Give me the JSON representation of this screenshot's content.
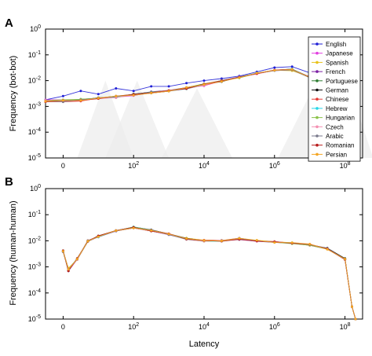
{
  "figure": {
    "panels": [
      {
        "letter": "A",
        "ylabel": "Frequency (bot-bot)"
      },
      {
        "letter": "B",
        "ylabel": "Frequency (human-human)"
      }
    ],
    "xlabel": "Latency",
    "x_ticks": [
      {
        "v": 0,
        "base": "0",
        "exp": ""
      },
      {
        "v": 2,
        "base": "10",
        "exp": "2"
      },
      {
        "v": 4,
        "base": "10",
        "exp": "4"
      },
      {
        "v": 6,
        "base": "10",
        "exp": "6"
      },
      {
        "v": 8,
        "base": "10",
        "exp": "8"
      }
    ],
    "y_ticks": [
      {
        "v": 0,
        "base": "10",
        "exp": "0"
      },
      {
        "v": -1,
        "base": "10",
        "exp": "-1"
      },
      {
        "v": -2,
        "base": "10",
        "exp": "-2"
      },
      {
        "v": -3,
        "base": "10",
        "exp": "-3"
      },
      {
        "v": -4,
        "base": "10",
        "exp": "-4"
      },
      {
        "v": -5,
        "base": "10",
        "exp": "-5"
      }
    ]
  },
  "chart_data": [
    {
      "type": "line",
      "panel": "A",
      "ylabel": "Frequency (bot-bot)",
      "xlabel": "",
      "x_scale": "log10 of latency (tick 0 at left)",
      "y_scale": "log",
      "xlim": [
        -0.5,
        8.5
      ],
      "ylim": [
        1e-05,
        1
      ],
      "grid": false,
      "legend_position": "top-right",
      "background_shapes": "light gray triangular bumps",
      "x": [
        -0.5,
        0,
        0.5,
        1,
        1.5,
        2,
        2.5,
        3,
        3.5,
        4,
        4.5,
        5,
        5.5,
        6,
        6.5,
        7,
        7.5,
        8
      ],
      "series": [
        {
          "name": "English",
          "color": "#1f1fd6",
          "values": [
            0.0018,
            0.0025,
            0.004,
            0.003,
            0.005,
            0.004,
            0.006,
            0.006,
            0.008,
            0.01,
            0.012,
            0.015,
            0.022,
            0.032,
            0.035,
            0.02,
            0.009,
            0.0025
          ]
        },
        {
          "name": "Japanese",
          "color": "#e23de0",
          "values": [
            0.0018,
            0.0018,
            0.0018,
            0.0021,
            0.0023,
            0.0026,
            0.0036,
            0.004,
            0.0054,
            0.0063,
            0.0098,
            0.0134,
            0.0185,
            0.0258,
            0.0276,
            0.0131,
            0.0046,
            0.0015
          ]
        },
        {
          "name": "Spanish",
          "color": "#e8c21a",
          "values": [
            0.0015,
            0.0016,
            0.0019,
            0.002,
            0.0024,
            0.0029,
            0.0033,
            0.0039,
            0.0054,
            0.0075,
            0.0101,
            0.0133,
            0.0193,
            0.0254,
            0.0243,
            0.0139,
            0.0049,
            0.0016
          ]
        },
        {
          "name": "French",
          "color": "#7a1fa2",
          "values": [
            0.0017,
            0.0017,
            0.0018,
            0.0021,
            0.0024,
            0.0029,
            0.0037,
            0.0042,
            0.0054,
            0.0072,
            0.01,
            0.0141,
            0.0191,
            0.0244,
            0.0262,
            0.0131,
            0.0048,
            0.0014
          ]
        },
        {
          "name": "Portuguese",
          "color": "#2e7d32",
          "values": [
            0.0015,
            0.0017,
            0.0019,
            0.0021,
            0.0023,
            0.003,
            0.0033,
            0.0041,
            0.0053,
            0.0075,
            0.0092,
            0.0138,
            0.0194,
            0.0257,
            0.0262,
            0.014,
            0.0047,
            0.0015
          ]
        },
        {
          "name": "German",
          "color": "#111111",
          "values": [
            0.0016,
            0.0016,
            0.0017,
            0.0022,
            0.0022,
            0.003,
            0.0036,
            0.0041,
            0.0051,
            0.0072,
            0.0091,
            0.0138,
            0.0187,
            0.0255,
            0.0283,
            0.0136,
            0.0046,
            0.0015
          ]
        },
        {
          "name": "Chinese",
          "color": "#e53935",
          "values": [
            0.0015,
            0.0015,
            0.0016,
            0.0021,
            0.0024,
            0.0029,
            0.0033,
            0.0039,
            0.0054,
            0.0066,
            0.0095,
            0.0137,
            0.0182,
            0.0253,
            0.0266,
            0.0142,
            0.0046,
            0.0016
          ]
        },
        {
          "name": "Hebrew",
          "color": "#26d6e8",
          "values": [
            0.0017,
            0.0017,
            0.0018,
            0.0021,
            0.0023,
            0.0028,
            0.0036,
            0.004,
            0.0048,
            0.0071,
            0.0099,
            0.0133,
            0.0199,
            0.0245,
            0.0282,
            0.0137,
            0.0048,
            0.0015
          ]
        },
        {
          "name": "Hungarian",
          "color": "#8bc34a",
          "values": [
            0.0017,
            0.0018,
            0.0019,
            0.0021,
            0.0025,
            0.0029,
            0.0035,
            0.0042,
            0.0048,
            0.0068,
            0.0102,
            0.0127,
            0.0191,
            0.0249,
            0.0263,
            0.0131,
            0.0046,
            0.0015
          ]
        },
        {
          "name": "Czech",
          "color": "#f48fb1",
          "values": [
            0.0017,
            0.0016,
            0.0017,
            0.002,
            0.0022,
            0.0028,
            0.0034,
            0.0042,
            0.0049,
            0.0066,
            0.0102,
            0.0139,
            0.0181,
            0.0259,
            0.0267,
            0.0136,
            0.0048,
            0.0015
          ]
        },
        {
          "name": "Arabic",
          "color": "#7a7a8c",
          "values": [
            0.0016,
            0.0015,
            0.0018,
            0.0021,
            0.0025,
            0.0027,
            0.0033,
            0.0039,
            0.0048,
            0.0071,
            0.0102,
            0.0136,
            0.0192,
            0.0245,
            0.0261,
            0.0131,
            0.0047,
            0.0016
          ]
        },
        {
          "name": "Romanian",
          "color": "#b71c1c",
          "values": [
            0.0016,
            0.0017,
            0.0017,
            0.002,
            0.0025,
            0.0029,
            0.0034,
            0.0041,
            0.0049,
            0.0074,
            0.0098,
            0.0134,
            0.0189,
            0.0257,
            0.0274,
            0.0136,
            0.0049,
            0.0016
          ]
        },
        {
          "name": "Persian",
          "color": "#f5a623",
          "values": [
            0.0016,
            0.0017,
            0.0017,
            0.0021,
            0.0025,
            0.0027,
            0.0033,
            0.0039,
            0.0054,
            0.0071,
            0.0093,
            0.0131,
            0.0197,
            0.0251,
            0.0272,
            0.0134,
            0.0046,
            0.0016
          ]
        }
      ]
    },
    {
      "type": "line",
      "panel": "B",
      "ylabel": "Frequency (human-human)",
      "xlabel": "Latency",
      "x_scale": "log10 of latency (tick 0 at left)",
      "y_scale": "log",
      "xlim": [
        -0.5,
        8.5
      ],
      "ylim": [
        1e-05,
        1
      ],
      "grid": false,
      "x": [
        0,
        0.15,
        0.4,
        0.7,
        1,
        1.5,
        2,
        2.5,
        3,
        3.5,
        4,
        4.5,
        5,
        5.5,
        6,
        6.5,
        7,
        7.5,
        8,
        8.2,
        8.3
      ],
      "series": [
        {
          "name": "English",
          "color": "#1f1fd6",
          "values": [
            0.004,
            0.0008,
            0.002,
            0.01,
            0.015,
            0.025,
            0.033,
            0.025,
            0.018,
            0.012,
            0.01,
            0.01,
            0.012,
            0.01,
            0.009,
            0.008,
            0.007,
            0.005,
            0.002,
            3e-05,
            5e-06
          ]
        },
        {
          "name": "Japanese",
          "color": "#e23de0",
          "values": [
            0.004,
            0.0007,
            0.0019,
            0.0097,
            0.0139,
            0.0234,
            0.0326,
            0.0242,
            0.0169,
            0.0119,
            0.0105,
            0.0104,
            0.0116,
            0.0095,
            0.0093,
            0.0081,
            0.0074,
            0.0049,
            0.0019,
            3e-05,
            6e-06
          ]
        },
        {
          "name": "Spanish",
          "color": "#e8c21a",
          "values": [
            0.0039,
            0.0009,
            0.0019,
            0.0094,
            0.0154,
            0.0248,
            0.0315,
            0.0244,
            0.0173,
            0.0127,
            0.0106,
            0.0102,
            0.0116,
            0.0104,
            0.0093,
            0.0084,
            0.007,
            0.0047,
            0.0021,
            3e-05,
            6e-06
          ]
        },
        {
          "name": "French",
          "color": "#7a1fa2",
          "values": [
            0.0038,
            0.0008,
            0.0019,
            0.0095,
            0.0144,
            0.0238,
            0.0308,
            0.0237,
            0.0174,
            0.0122,
            0.0103,
            0.0102,
            0.0111,
            0.0096,
            0.0087,
            0.008,
            0.0068,
            0.0048,
            0.0019,
            3e-05,
            6e-06
          ]
        },
        {
          "name": "Portuguese",
          "color": "#2e7d32",
          "values": [
            0.0042,
            0.0008,
            0.0021,
            0.0095,
            0.0155,
            0.0241,
            0.0312,
            0.0235,
            0.0181,
            0.0122,
            0.0102,
            0.0104,
            0.0114,
            0.0102,
            0.0087,
            0.0084,
            0.0071,
            0.0049,
            0.002,
            3e-05,
            6e-06
          ]
        },
        {
          "name": "German",
          "color": "#111111",
          "values": [
            0.0039,
            0.0007,
            0.0021,
            0.0095,
            0.0143,
            0.0237,
            0.0339,
            0.0264,
            0.0184,
            0.0125,
            0.0099,
            0.0099,
            0.0121,
            0.0101,
            0.0089,
            0.0081,
            0.0071,
            0.0052,
            0.0021,
            3e-05,
            5e-06
          ]
        },
        {
          "name": "Chinese",
          "color": "#e53935",
          "values": [
            0.0039,
            0.0008,
            0.002,
            0.0103,
            0.0145,
            0.0244,
            0.0333,
            0.0254,
            0.0188,
            0.0113,
            0.0106,
            0.0103,
            0.0126,
            0.0097,
            0.0094,
            0.0081,
            0.0067,
            0.0049,
            0.002,
            3e-05,
            6e-06
          ]
        },
        {
          "name": "Hebrew",
          "color": "#26d6e8",
          "values": [
            0.0039,
            0.0008,
            0.002,
            0.01,
            0.0139,
            0.0239,
            0.0341,
            0.0254,
            0.0181,
            0.0121,
            0.0096,
            0.0096,
            0.0118,
            0.01,
            0.0088,
            0.0084,
            0.0071,
            0.005,
            0.0019,
            3e-05,
            6e-06
          ]
        },
        {
          "name": "Hungarian",
          "color": "#8bc34a",
          "values": [
            0.0039,
            0.0008,
            0.0019,
            0.0095,
            0.0152,
            0.0245,
            0.0335,
            0.0254,
            0.0176,
            0.0112,
            0.0095,
            0.0103,
            0.0119,
            0.0098,
            0.0088,
            0.0077,
            0.0068,
            0.0048,
            0.002,
            3e-05,
            5e-06
          ]
        },
        {
          "name": "Czech",
          "color": "#f48fb1",
          "values": [
            0.004,
            0.0008,
            0.0019,
            0.01,
            0.0144,
            0.0239,
            0.0307,
            0.0234,
            0.0182,
            0.0112,
            0.0096,
            0.0103,
            0.0115,
            0.0096,
            0.0093,
            0.008,
            0.0073,
            0.005,
            0.0019,
            3e-05,
            6e-06
          ]
        },
        {
          "name": "Arabic",
          "color": "#7a7a8c",
          "values": [
            0.0038,
            0.0008,
            0.002,
            0.0102,
            0.0144,
            0.024,
            0.0309,
            0.0257,
            0.0171,
            0.0115,
            0.0101,
            0.0098,
            0.0127,
            0.0099,
            0.0091,
            0.0082,
            0.0073,
            0.0049,
            0.0019,
            3e-05,
            5e-06
          ]
        },
        {
          "name": "Romanian",
          "color": "#b71c1c",
          "values": [
            0.0042,
            0.0007,
            0.0021,
            0.0095,
            0.0155,
            0.0247,
            0.033,
            0.0236,
            0.0186,
            0.0118,
            0.0102,
            0.0096,
            0.0114,
            0.0097,
            0.0091,
            0.0081,
            0.0073,
            0.0049,
            0.0019,
            3e-05,
            5e-06
          ]
        },
        {
          "name": "Persian",
          "color": "#f5a623",
          "values": [
            0.004,
            0.0008,
            0.002,
            0.0098,
            0.0142,
            0.0245,
            0.0308,
            0.0249,
            0.0181,
            0.0122,
            0.0103,
            0.0099,
            0.0125,
            0.0105,
            0.0086,
            0.0085,
            0.0075,
            0.0047,
            0.002,
            3e-05,
            5e-06
          ]
        }
      ]
    }
  ]
}
